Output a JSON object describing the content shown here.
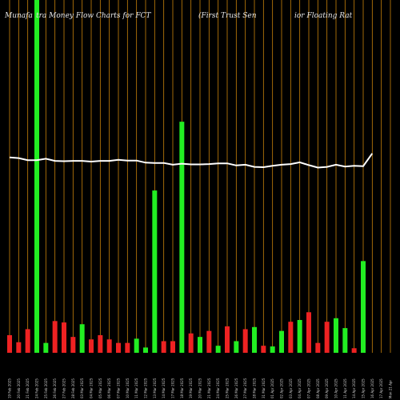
{
  "header": {
    "title_left": "Munafa",
    "title_mid": "tra  Money Flow  Charts for FCT",
    "title_right_a": "(First Trust Sen",
    "title_right_b": "ior Floating Rat"
  },
  "colors": {
    "background": "#000000",
    "up": "#22ee22",
    "down": "#ee2222",
    "grid": "#c8820a",
    "price_line": "#ffffff"
  },
  "chart_data": {
    "type": "bar",
    "title": "Munafa tra Money Flow Charts for FCT (First Trust Sen ior Floating Rat",
    "grid": true,
    "bar_ylim": [
      0,
      100
    ],
    "price_ylim": [
      0,
      100
    ],
    "categories": [
      "19 Feb 2025",
      "20 Feb 2025",
      "21 Feb 2025",
      "24 Feb 2025",
      "25 Feb 2025",
      "26 Feb 2025",
      "27 Feb 2025",
      "28 Feb 2025",
      "03 Mar 2025",
      "04 Mar 2025",
      "05 Mar 2025",
      "06 Mar 2025",
      "07 Mar 2025",
      "10 Mar 2025",
      "11 Mar 2025",
      "12 Mar 2025",
      "13 Mar 2025",
      "14 Mar 2025",
      "17 Mar 2025",
      "18 Mar 2025",
      "19 Mar 2025",
      "20 Mar 2025",
      "21 Mar 2025",
      "24 Mar 2025",
      "25 Mar 2025",
      "26 Mar 2025",
      "27 Mar 2025",
      "28 Mar 2025",
      "31 Mar 2025",
      "01 Apr 2025",
      "02 Apr 2025",
      "03 Apr 2025",
      "04 Apr 2025",
      "07 Apr 2025",
      "08 Apr 2025",
      "09 Apr 2025",
      "10 Apr 2025",
      "11 Apr 2025",
      "14 Apr 2025",
      "15 Apr 2025",
      "16 Apr 2025",
      "17 Apr 2025",
      "Mon 21 Apr"
    ],
    "directions": [
      "down",
      "down",
      "down",
      "up",
      "up",
      "down",
      "down",
      "down",
      "up",
      "down",
      "down",
      "down",
      "down",
      "down",
      "up",
      "up",
      "up",
      "down",
      "down",
      "up",
      "down",
      "up",
      "down",
      "up",
      "down",
      "up",
      "down",
      "up",
      "down",
      "up",
      "up",
      "down",
      "up",
      "down",
      "down",
      "down",
      "up",
      "up",
      "down",
      "up",
      "up",
      "up",
      "up"
    ],
    "values": [
      5.0,
      3.0,
      6.7,
      100,
      2.8,
      9.0,
      8.6,
      4.5,
      8.1,
      3.8,
      5.0,
      3.8,
      2.8,
      2.8,
      4.0,
      1.5,
      46.0,
      3.3,
      3.3,
      65.5,
      5.5,
      4.5,
      6.2,
      2.0,
      7.5,
      3.3,
      6.7,
      7.3,
      2.0,
      1.8,
      6.2,
      8.8,
      9.3,
      11.5,
      2.8,
      8.8,
      9.8,
      7.0,
      1.3,
      26.0,
      0,
      0,
      0
    ],
    "price_line": [
      55.4,
      55.2,
      54.6,
      54.6,
      55.0,
      54.4,
      54.3,
      54.4,
      54.4,
      54.2,
      54.4,
      54.4,
      54.7,
      54.5,
      54.5,
      53.9,
      53.8,
      53.8,
      53.3,
      53.6,
      53.4,
      53.4,
      53.5,
      53.7,
      53.7,
      53.1,
      53.3,
      52.7,
      52.6,
      53.0,
      53.3,
      53.5,
      54.0,
      53.2,
      52.5,
      52.7,
      53.3,
      52.8,
      53.0,
      52.9,
      56.5,
      0,
      0
    ]
  }
}
